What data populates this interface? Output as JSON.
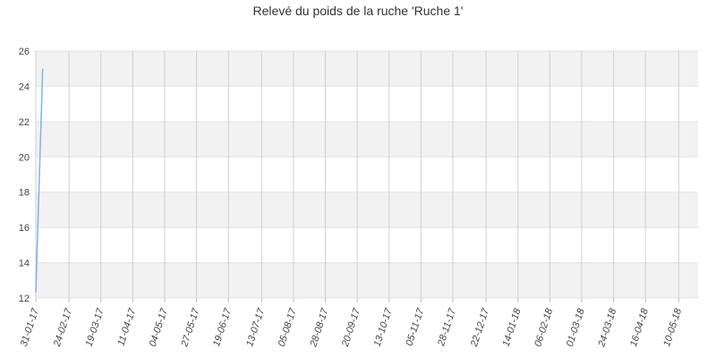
{
  "chart_data": {
    "type": "line",
    "title": "Relevé du poids de la ruche 'Ruche 1'",
    "xlabel": "",
    "ylabel": "",
    "ylim": [
      12,
      26
    ],
    "yticks": [
      "12",
      "14",
      "16",
      "18",
      "20",
      "22",
      "24",
      "26"
    ],
    "x_date_range": [
      "2017-01-31",
      "2018-05-24"
    ],
    "x_tick_dates": [
      "2017-01-31",
      "2017-02-24",
      "2017-03-19",
      "2017-04-11",
      "2017-05-04",
      "2017-05-27",
      "2017-06-19",
      "2017-07-13",
      "2017-08-05",
      "2017-08-28",
      "2017-09-20",
      "2017-10-13",
      "2017-11-05",
      "2017-11-28",
      "2017-12-22",
      "2018-01-14",
      "2018-02-06",
      "2018-03-01",
      "2018-03-24",
      "2018-04-16",
      "2018-05-10"
    ],
    "x_tick_labels": [
      "31-01-17",
      "24-02-17",
      "19-03-17",
      "11-04-17",
      "04-05-17",
      "27-05-17",
      "19-06-17",
      "13-07-17",
      "05-08-17",
      "28-08-17",
      "20-09-17",
      "13-10-17",
      "05-11-17",
      "28-11-17",
      "22-12-17",
      "14-01-18",
      "06-02-18",
      "01-03-18",
      "24-03-18",
      "16-04-18",
      "10-05-18"
    ],
    "grid": true,
    "legend": "none",
    "series": [
      {
        "color": "#7cb5ec",
        "points": [
          {
            "x": "2017-01-31",
            "y": 12.3
          },
          {
            "x": "2017-02-05",
            "y": 25.0
          }
        ]
      }
    ]
  }
}
